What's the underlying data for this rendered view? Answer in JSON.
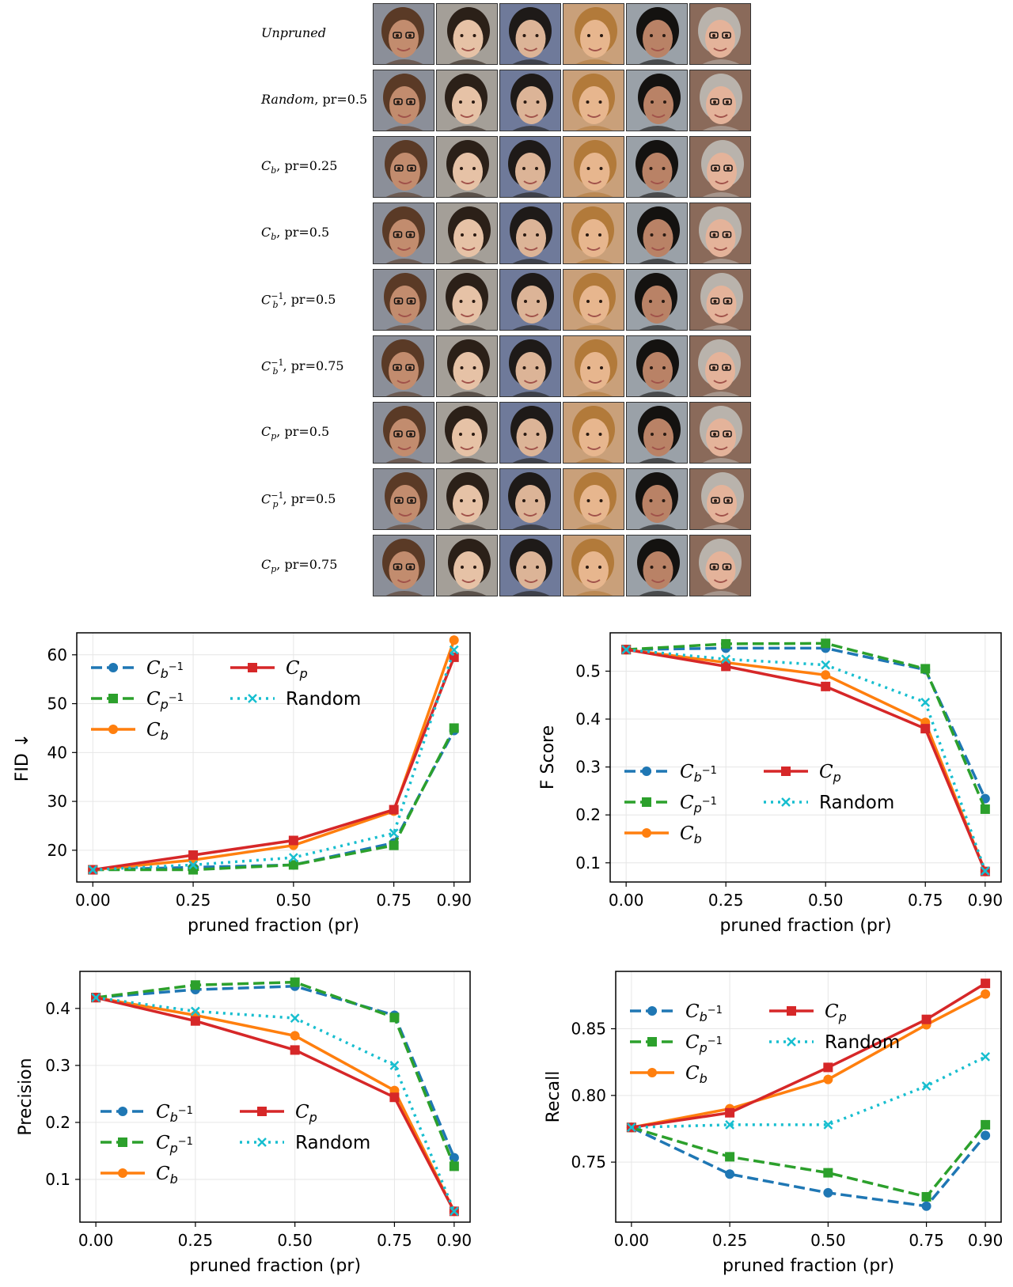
{
  "grid": {
    "rows": [
      {
        "label_a": "Unpruned",
        "label_b": "",
        "sub": "",
        "sup": "",
        "italic_a": true
      },
      {
        "label_a": "Random",
        "label_b": ", pr=0.5",
        "sub": "",
        "sup": "",
        "italic_a": true
      },
      {
        "label_a": "C",
        "label_b": ", pr=0.25",
        "sub": "b",
        "sup": "",
        "italic_a": false
      },
      {
        "label_a": "C",
        "label_b": ", pr=0.5",
        "sub": "b",
        "sup": "",
        "italic_a": false
      },
      {
        "label_a": "C",
        "label_b": ", pr=0.5",
        "sub": "b",
        "sup": "−1",
        "italic_a": false
      },
      {
        "label_a": "C",
        "label_b": ", pr=0.75",
        "sub": "b",
        "sup": "−1",
        "italic_a": false
      },
      {
        "label_a": "C",
        "label_b": ", pr=0.5",
        "sub": "p",
        "sup": "",
        "italic_a": false
      },
      {
        "label_a": "C",
        "label_b": ", pr=0.5",
        "sub": "p",
        "sup": "−1",
        "italic_a": false
      },
      {
        "label_a": "C",
        "label_b": ", pr=0.75",
        "sub": "p",
        "sup": "",
        "italic_a": false
      }
    ],
    "face_backgrounds": [
      "#8b8f99",
      "#a49f98",
      "#6f7a9a",
      "#c9a07a",
      "#9aa1a8",
      "#8a6a5a"
    ],
    "face_skin": [
      "#c28c6e",
      "#e6c2a6",
      "#dcb497",
      "#e7b68e",
      "#b98266",
      "#e4b39a"
    ],
    "face_hair": [
      "#5a3a26",
      "#2b2018",
      "#1e1a18",
      "#b27a3a",
      "#141210",
      "#b9b3ac"
    ]
  },
  "legend_labels": {
    "cb_inv": "C",
    "cp_inv": "C",
    "cb": "C",
    "cp": "C",
    "random": "Random"
  },
  "series_colors": {
    "cb_inv": "#1f77b4",
    "cp_inv": "#2ca02c",
    "cb": "#ff7f0e",
    "cp": "#d62728",
    "random": "#17becf"
  },
  "chart_data": [
    {
      "type": "line",
      "xlabel": "pruned fraction (pr)",
      "ylabel": "FID ↓",
      "x": [
        0.0,
        0.25,
        0.5,
        0.75,
        0.9
      ],
      "x_ticks": [
        "0.00",
        "0.25",
        "0.50",
        "0.75",
        "0.90"
      ],
      "ylim": [
        13.5,
        64.5
      ],
      "y_ticks": [
        20,
        30,
        40,
        50,
        60
      ],
      "y_tick_labels": [
        "20",
        "30",
        "40",
        "50",
        "60"
      ],
      "legend": "upper-left",
      "grid": true,
      "series": [
        {
          "key": "cb_inv",
          "values": [
            16.0,
            16.5,
            17.0,
            21.5,
            44.5
          ]
        },
        {
          "key": "cp_inv",
          "values": [
            16.0,
            16.0,
            17.0,
            21.0,
            45.0
          ]
        },
        {
          "key": "cb",
          "values": [
            16.0,
            18.0,
            21.0,
            28.0,
            63.0
          ]
        },
        {
          "key": "cp",
          "values": [
            16.0,
            19.0,
            22.0,
            28.3,
            59.5
          ]
        },
        {
          "key": "random",
          "values": [
            16.0,
            17.0,
            18.5,
            23.5,
            61.0
          ]
        }
      ]
    },
    {
      "type": "line",
      "xlabel": "pruned fraction (pr)",
      "ylabel": "F Score",
      "x": [
        0.0,
        0.25,
        0.5,
        0.75,
        0.9
      ],
      "x_ticks": [
        "0.00",
        "0.25",
        "0.50",
        "0.75",
        "0.90"
      ],
      "ylim": [
        0.06,
        0.58
      ],
      "y_ticks": [
        0.1,
        0.2,
        0.3,
        0.4,
        0.5
      ],
      "y_tick_labels": [
        "0.1",
        "0.2",
        "0.3",
        "0.4",
        "0.5"
      ],
      "legend": "lower-left",
      "grid": true,
      "series": [
        {
          "key": "cb_inv",
          "values": [
            0.545,
            0.548,
            0.548,
            0.503,
            0.234
          ]
        },
        {
          "key": "cp_inv",
          "values": [
            0.545,
            0.557,
            0.558,
            0.505,
            0.212
          ]
        },
        {
          "key": "cb",
          "values": [
            0.545,
            0.518,
            0.492,
            0.393,
            0.082
          ]
        },
        {
          "key": "cp",
          "values": [
            0.545,
            0.51,
            0.468,
            0.38,
            0.082
          ]
        },
        {
          "key": "random",
          "values": [
            0.545,
            0.525,
            0.513,
            0.435,
            0.083
          ]
        }
      ]
    },
    {
      "type": "line",
      "xlabel": "pruned fraction (pr)",
      "ylabel": "Precision",
      "x": [
        0.0,
        0.25,
        0.5,
        0.75,
        0.9
      ],
      "x_ticks": [
        "0.00",
        "0.25",
        "0.50",
        "0.75",
        "0.90"
      ],
      "ylim": [
        0.025,
        0.465
      ],
      "y_ticks": [
        0.1,
        0.2,
        0.3,
        0.4
      ],
      "y_tick_labels": [
        "0.1",
        "0.2",
        "0.3",
        "0.4"
      ],
      "legend": "lower-left",
      "grid": true,
      "series": [
        {
          "key": "cb_inv",
          "values": [
            0.419,
            0.433,
            0.439,
            0.388,
            0.138
          ]
        },
        {
          "key": "cp_inv",
          "values": [
            0.419,
            0.441,
            0.446,
            0.384,
            0.123
          ]
        },
        {
          "key": "cb",
          "values": [
            0.419,
            0.388,
            0.352,
            0.256,
            0.044
          ]
        },
        {
          "key": "cp",
          "values": [
            0.419,
            0.378,
            0.327,
            0.244,
            0.044
          ]
        },
        {
          "key": "random",
          "values": [
            0.419,
            0.395,
            0.383,
            0.3,
            0.044
          ]
        }
      ]
    },
    {
      "type": "line",
      "xlabel": "pruned fraction (pr)",
      "ylabel": "Recall",
      "x": [
        0.0,
        0.25,
        0.5,
        0.75,
        0.9
      ],
      "x_ticks": [
        "0.00",
        "0.25",
        "0.50",
        "0.75",
        "0.90"
      ],
      "ylim": [
        0.705,
        0.893
      ],
      "y_ticks": [
        0.75,
        0.8,
        0.85
      ],
      "y_tick_labels": [
        "0.75",
        "0.80",
        "0.85"
      ],
      "legend": "upper-left",
      "grid": true,
      "series": [
        {
          "key": "cb_inv",
          "values": [
            0.776,
            0.741,
            0.727,
            0.717,
            0.77
          ]
        },
        {
          "key": "cp_inv",
          "values": [
            0.776,
            0.754,
            0.742,
            0.724,
            0.778
          ]
        },
        {
          "key": "cb",
          "values": [
            0.776,
            0.79,
            0.812,
            0.853,
            0.876
          ]
        },
        {
          "key": "cp",
          "values": [
            0.776,
            0.787,
            0.821,
            0.857,
            0.884
          ]
        },
        {
          "key": "random",
          "values": [
            0.776,
            0.778,
            0.778,
            0.807,
            0.829
          ]
        }
      ]
    }
  ]
}
